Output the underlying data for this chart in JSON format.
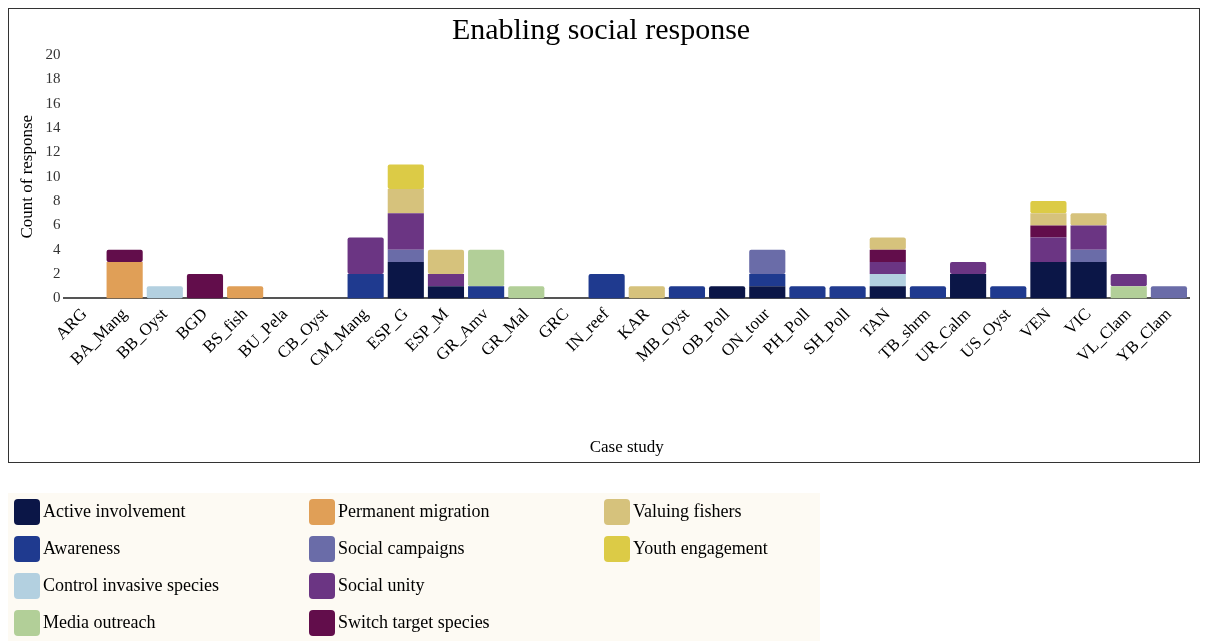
{
  "chart_data": {
    "type": "bar",
    "title": "Enabling social response",
    "xlabel": "Case study",
    "ylabel": "Count of response",
    "categories": [
      "ARG",
      "BA_Mang",
      "BB_Oyst",
      "BGD",
      "BS_fish",
      "BU_Pela",
      "CB_Oyst",
      "CM_Mang",
      "ESP_G",
      "ESP_M",
      "GR_Amv",
      "GR_Mal",
      "GRC",
      "IN_reef",
      "KAR",
      "MB_Oyst",
      "OB_Poll",
      "ON_tour",
      "PH_Poll",
      "SH_Poll",
      "TAN",
      "TB_shrm",
      "UR_Calm",
      "US_Oyst",
      "VEN",
      "VIC",
      "VL_Clam",
      "YB_Clam"
    ],
    "stacked": true,
    "ylim": [
      0,
      20
    ],
    "yticks": [
      0,
      2,
      4,
      6,
      8,
      10,
      12,
      14,
      16,
      18,
      20
    ],
    "grid": false,
    "legend": "bottom",
    "series": [
      {
        "name": "Active involvement",
        "color": "#0b1647",
        "values": [
          0,
          0,
          0,
          0,
          0,
          0,
          0,
          0,
          3,
          1,
          0,
          0,
          0,
          0,
          0,
          0,
          1,
          1,
          0,
          0,
          1,
          0,
          2,
          0,
          3,
          3,
          0,
          0
        ]
      },
      {
        "name": "Awareness",
        "color": "#1f3a8f",
        "values": [
          0,
          0,
          0,
          0,
          0,
          0,
          0,
          2,
          0,
          0,
          1,
          0,
          0,
          2,
          0,
          1,
          0,
          1,
          1,
          1,
          0,
          1,
          0,
          1,
          0,
          0,
          0,
          0
        ]
      },
      {
        "name": "Control invasive species",
        "color": "#b3d0e0",
        "values": [
          0,
          0,
          1,
          0,
          0,
          0,
          0,
          0,
          0,
          0,
          0,
          0,
          0,
          0,
          0,
          0,
          0,
          0,
          0,
          0,
          1,
          0,
          0,
          0,
          0,
          0,
          0,
          0
        ]
      },
      {
        "name": "Media outreach",
        "color": "#b2cf98",
        "values": [
          0,
          0,
          0,
          0,
          0,
          0,
          0,
          0,
          0,
          0,
          3,
          1,
          0,
          0,
          0,
          0,
          0,
          0,
          0,
          0,
          0,
          0,
          0,
          0,
          0,
          0,
          1,
          0
        ]
      },
      {
        "name": "Permanent migration",
        "color": "#e09f57",
        "values": [
          0,
          3,
          0,
          0,
          1,
          0,
          0,
          0,
          0,
          0,
          0,
          0,
          0,
          0,
          0,
          0,
          0,
          0,
          0,
          0,
          0,
          0,
          0,
          0,
          0,
          0,
          0,
          0
        ]
      },
      {
        "name": "Social campaigns",
        "color": "#6a6ca8",
        "values": [
          0,
          0,
          0,
          0,
          0,
          0,
          0,
          0,
          1,
          0,
          0,
          0,
          0,
          0,
          0,
          0,
          0,
          2,
          0,
          0,
          0,
          0,
          0,
          0,
          0,
          1,
          0,
          1
        ]
      },
      {
        "name": "Social unity",
        "color": "#6b3583",
        "values": [
          0,
          0,
          0,
          0,
          0,
          0,
          0,
          3,
          3,
          1,
          0,
          0,
          0,
          0,
          0,
          0,
          0,
          0,
          0,
          0,
          1,
          0,
          1,
          0,
          2,
          2,
          1,
          0
        ]
      },
      {
        "name": "Switch target species",
        "color": "#620d4b",
        "values": [
          0,
          1,
          0,
          2,
          0,
          0,
          0,
          0,
          0,
          0,
          0,
          0,
          0,
          0,
          0,
          0,
          0,
          0,
          0,
          0,
          1,
          0,
          0,
          0,
          1,
          0,
          0,
          0
        ]
      },
      {
        "name": "Valuing fishers",
        "color": "#d6c27c",
        "values": [
          0,
          0,
          0,
          0,
          0,
          0,
          0,
          0,
          2,
          2,
          0,
          0,
          0,
          0,
          1,
          0,
          0,
          0,
          0,
          0,
          1,
          0,
          0,
          0,
          1,
          1,
          0,
          0
        ]
      },
      {
        "name": "Youth engagement",
        "color": "#dccb46",
        "values": [
          0,
          0,
          0,
          0,
          0,
          0,
          0,
          0,
          2,
          0,
          0,
          0,
          0,
          0,
          0,
          0,
          0,
          0,
          0,
          0,
          0,
          0,
          0,
          0,
          1,
          0,
          0,
          0
        ]
      }
    ]
  }
}
